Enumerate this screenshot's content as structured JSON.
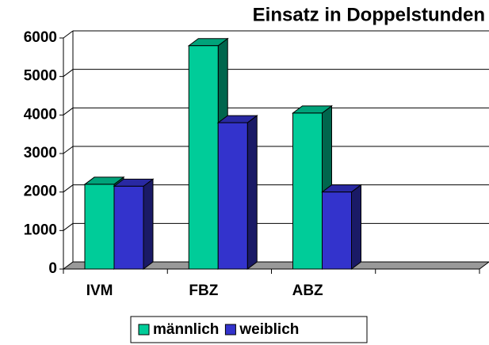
{
  "chart_data": {
    "type": "bar3d",
    "title": "Einsatz in Doppelstunden",
    "categories": [
      "IVM",
      "FBZ",
      "ABZ",
      null
    ],
    "series": [
      {
        "name": "männlich",
        "color": "#00CC99",
        "values": [
          2200,
          5800,
          4050,
          null
        ]
      },
      {
        "name": "weiblich",
        "color": "#3333CC",
        "values": [
          2150,
          3800,
          2000,
          null
        ]
      }
    ],
    "ylim": [
      0,
      6000
    ],
    "yticks": [
      0,
      1000,
      2000,
      3000,
      4000,
      5000,
      6000
    ],
    "grid": true,
    "legend": "bottom"
  }
}
